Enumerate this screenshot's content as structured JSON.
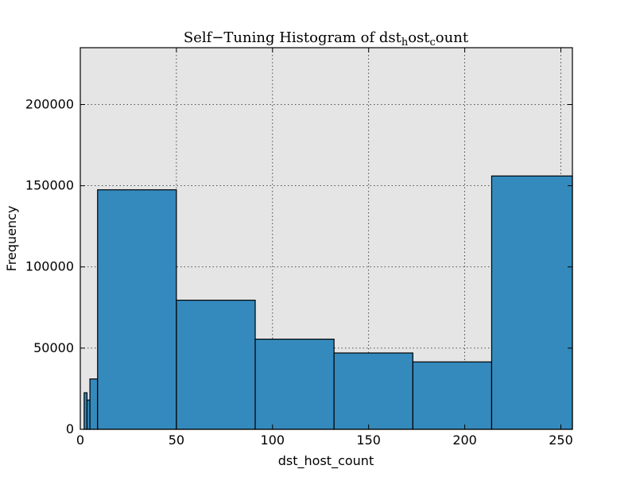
{
  "chart_data": {
    "type": "bar",
    "title": "Self−Tuning Histogram of dst",
    "title_sub1": "h",
    "title_mid": "ost",
    "title_sub2": "c",
    "title_end": "ount",
    "xlabel": "dst_host_count",
    "ylabel": "Frequency",
    "xlim": [
      0,
      256
    ],
    "ylim": [
      0,
      235000
    ],
    "grid": true,
    "background": "#e5e5e5",
    "bar_color": "#348abd",
    "x_ticks": [
      0,
      50,
      100,
      150,
      200,
      250
    ],
    "y_ticks": [
      0,
      50000,
      100000,
      150000,
      200000
    ],
    "bins": [
      {
        "x0": 2,
        "x1": 3.5,
        "value": 22500
      },
      {
        "x0": 3.5,
        "x1": 5,
        "value": 18000
      },
      {
        "x0": 5,
        "x1": 9,
        "value": 31000
      },
      {
        "x0": 9,
        "x1": 50,
        "value": 147500
      },
      {
        "x0": 50,
        "x1": 91,
        "value": 79500
      },
      {
        "x0": 91,
        "x1": 132,
        "value": 55500
      },
      {
        "x0": 132,
        "x1": 173,
        "value": 47000
      },
      {
        "x0": 173,
        "x1": 214,
        "value": 41500
      },
      {
        "x0": 214,
        "x1": 256,
        "value": 156000
      }
    ]
  }
}
